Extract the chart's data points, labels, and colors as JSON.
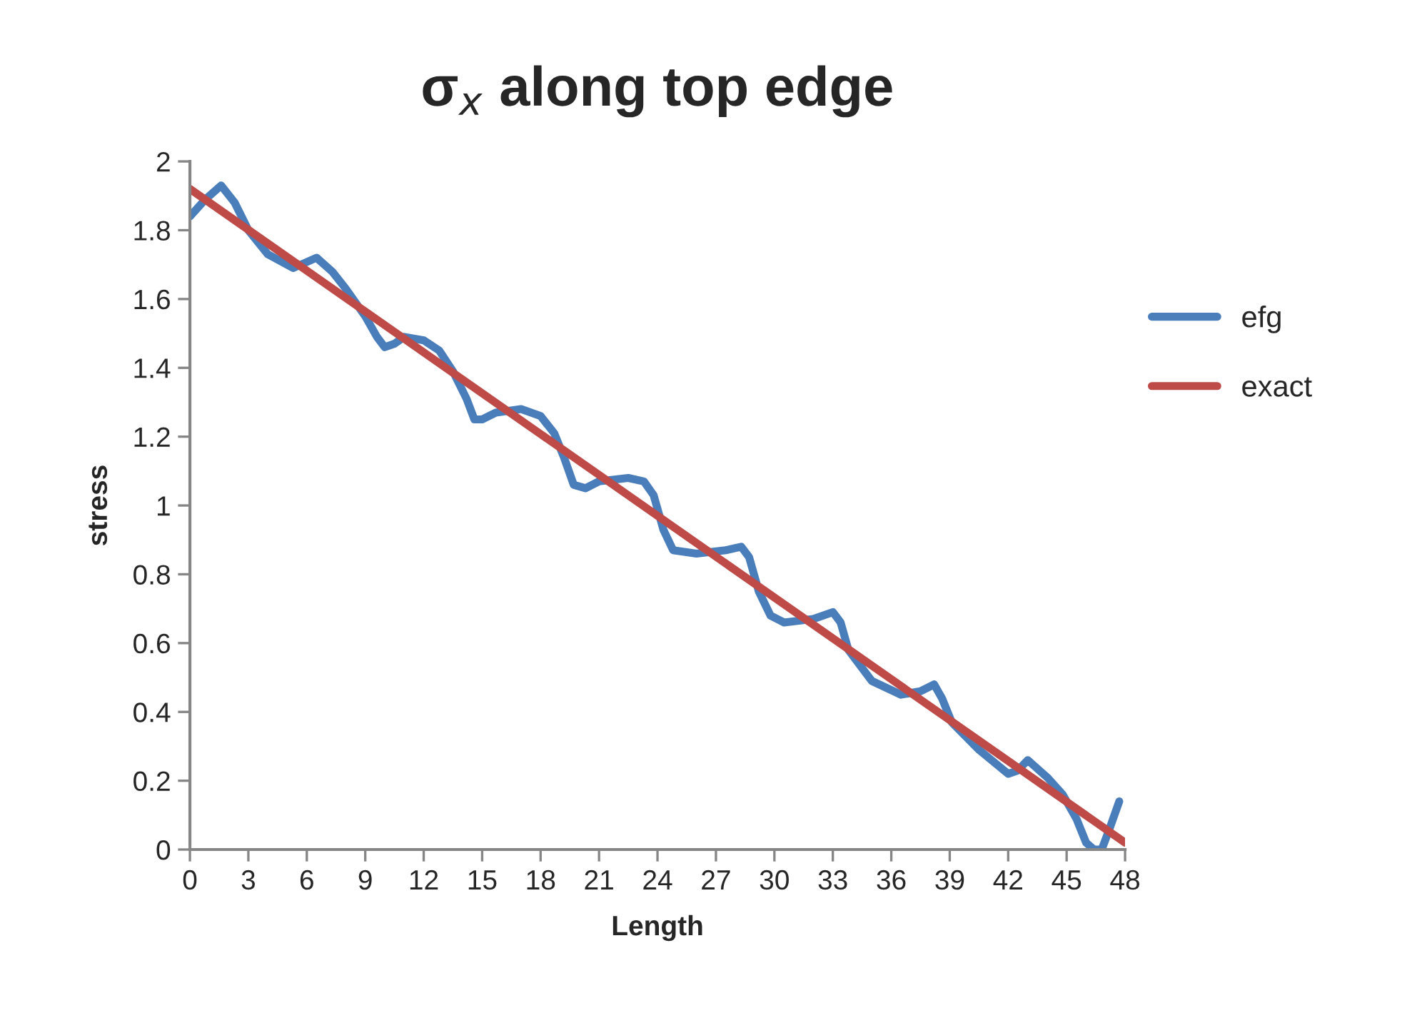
{
  "chart_data": {
    "type": "line",
    "title": "σ$_{x}$ along top edge",
    "xlabel": "Length",
    "ylabel": "stress",
    "xlim": [
      0,
      48
    ],
    "xticks": [
      0,
      3,
      6,
      9,
      12,
      15,
      18,
      21,
      24,
      27,
      30,
      33,
      36,
      39,
      42,
      45,
      48
    ],
    "ylim": [
      0,
      2
    ],
    "yticks": [
      0,
      0.2,
      0.4,
      0.6,
      0.8,
      1,
      1.2,
      1.4,
      1.6,
      1.8,
      2
    ],
    "grid": false,
    "legend": "right",
    "marker": "none",
    "line_style": "solid",
    "series": [
      {
        "name": "efg",
        "color": "#4a7ebb",
        "x": [
          0,
          0.8,
          1.6,
          2.3,
          3,
          4,
          5.3,
          6.5,
          7.3,
          8,
          9,
          9.6,
          10,
          10.5,
          11,
          12,
          12.8,
          13.5,
          14.2,
          14.6,
          15,
          15.7,
          17,
          18,
          18.7,
          19.2,
          19.7,
          20.3,
          21,
          22.5,
          23.3,
          23.8,
          24.3,
          24.8,
          26,
          27.5,
          28.3,
          28.7,
          29.2,
          29.8,
          30.5,
          32,
          33,
          33.4,
          33.8,
          35,
          36.5,
          37.5,
          38.2,
          38.6,
          39.1,
          40.5,
          42,
          42.5,
          43,
          44,
          44.8,
          45.5,
          46,
          46.4,
          46.8,
          47.2,
          47.7
        ],
        "values": [
          1.84,
          1.89,
          1.93,
          1.88,
          1.8,
          1.73,
          1.69,
          1.72,
          1.68,
          1.63,
          1.55,
          1.49,
          1.46,
          1.47,
          1.49,
          1.48,
          1.45,
          1.39,
          1.31,
          1.25,
          1.25,
          1.27,
          1.28,
          1.26,
          1.21,
          1.14,
          1.06,
          1.05,
          1.07,
          1.08,
          1.07,
          1.03,
          0.93,
          0.87,
          0.86,
          0.87,
          0.88,
          0.85,
          0.75,
          0.68,
          0.66,
          0.67,
          0.69,
          0.66,
          0.58,
          0.49,
          0.45,
          0.46,
          0.48,
          0.44,
          0.37,
          0.29,
          0.22,
          0.23,
          0.26,
          0.21,
          0.16,
          0.09,
          0.02,
          0,
          0,
          0.06,
          0.14
        ]
      },
      {
        "name": "exact",
        "color": "#be4b48",
        "x": [
          0,
          48
        ],
        "values": [
          1.92,
          0.02
        ]
      }
    ]
  }
}
